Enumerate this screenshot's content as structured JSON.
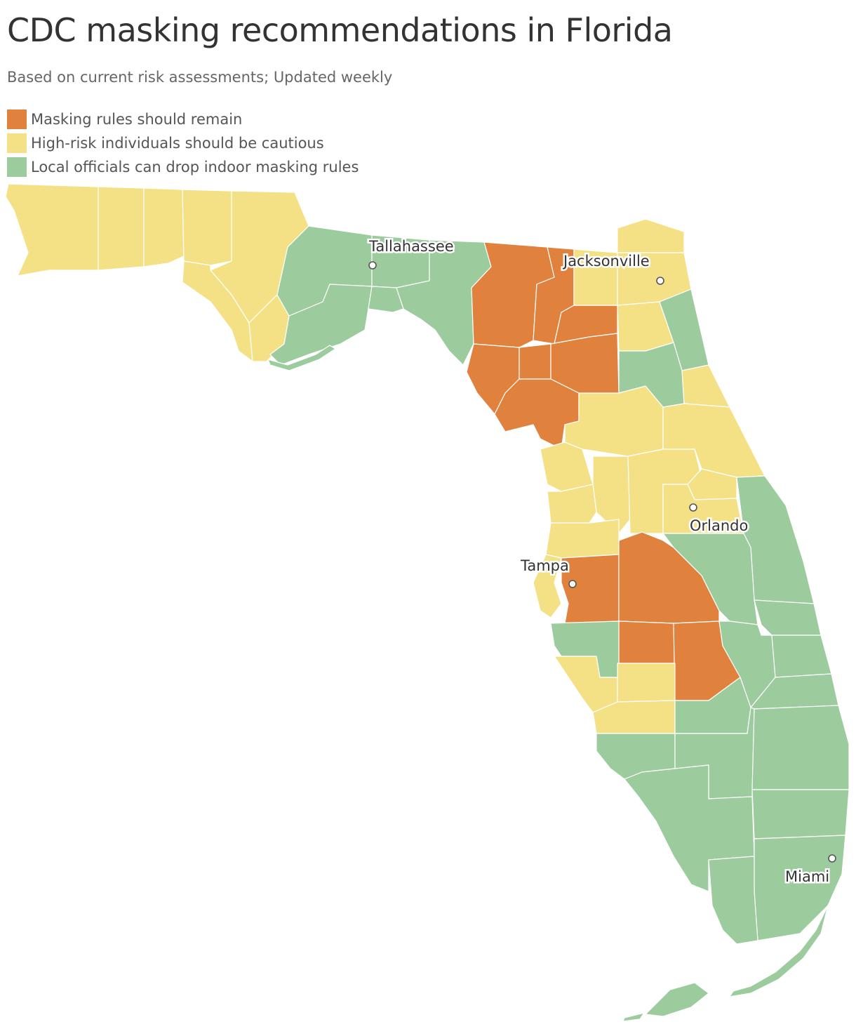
{
  "title": "CDC masking recommendations in Florida",
  "subtitle": "Based on current risk assessments; Updated weekly",
  "colors": {
    "remain": "#e0823e",
    "cautious": "#f5e185",
    "drop": "#9ccb9e"
  },
  "legend": [
    {
      "key": "remain",
      "label": "Masking rules should remain"
    },
    {
      "key": "cautious",
      "label": "High-risk individuals should be cautious"
    },
    {
      "key": "drop",
      "label": "Local officials can drop indoor masking rules"
    }
  ],
  "cities": {
    "tallahassee": "Tallahassee",
    "jacksonville": "Jacksonville",
    "orlando": "Orlando",
    "tampa": "Tampa",
    "miami": "Miami"
  }
}
